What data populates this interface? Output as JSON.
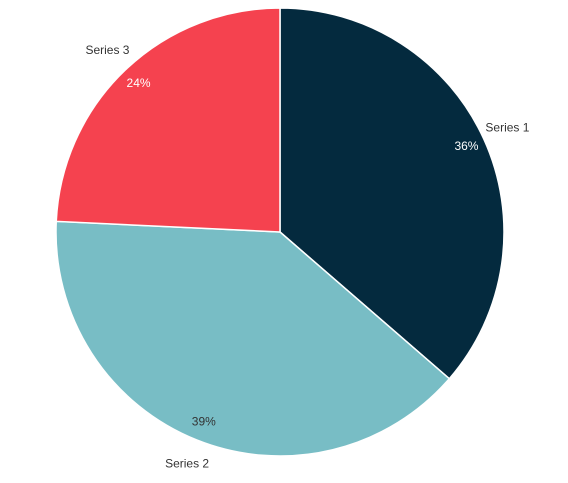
{
  "chart_data": {
    "type": "pie",
    "categories": [
      "Series 1",
      "Series 2",
      "Series 3"
    ],
    "values": [
      36,
      39,
      24
    ],
    "value_labels": [
      "36%",
      "39%",
      "24%"
    ],
    "colors": [
      "#042a3e",
      "#78bdc5",
      "#f5424f"
    ],
    "label_colors": [
      "#ffffff",
      "#333333",
      "#ffffff"
    ]
  }
}
